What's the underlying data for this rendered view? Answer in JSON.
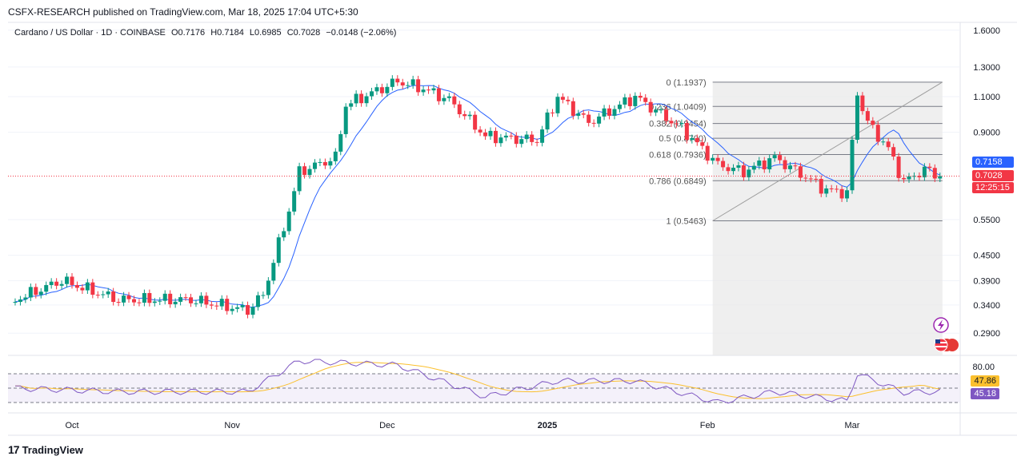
{
  "header": {
    "publisher_line": "CSFX-RESEARCH published on TradingView.com, Mar 18, 2025 17:04 UTC+5:30"
  },
  "legend": {
    "symbol": "Cardano / US Dollar · 1D · COINBASE",
    "open": "O0.7176",
    "high": "H0.7184",
    "low": "L0.6985",
    "close": "C0.7028",
    "change": "−0.0148 (−2.06%)"
  },
  "price_axis": {
    "ticks": [
      "1.6000",
      "1.3000",
      "1.1000",
      "0.9000",
      "0.5500",
      "0.4500",
      "0.3900",
      "0.3400",
      "0.2900"
    ],
    "ma_tag": "0.7158",
    "last_price_tag": "0.7028",
    "countdown": "12:25:15"
  },
  "rsi_axis": {
    "top_tick": "80.00",
    "ma_value": "47.86",
    "rsi_value": "45.18"
  },
  "time_axis": {
    "labels": [
      "Oct",
      "Nov",
      "Dec",
      "2025",
      "Feb",
      "Mar"
    ]
  },
  "fib": {
    "levels": [
      {
        "label": "0 (1.1937)",
        "ratio": 0,
        "price": 1.1937
      },
      {
        "label": "0.236 (1.0409)",
        "ratio": 0.236,
        "price": 1.0409
      },
      {
        "label": "0.382 (0.9454)",
        "ratio": 0.382,
        "price": 0.9454
      },
      {
        "label": "0.5 (0.8700)",
        "ratio": 0.5,
        "price": 0.87
      },
      {
        "label": "0.618 (0.7936)",
        "ratio": 0.618,
        "price": 0.7936
      },
      {
        "label": "0.786 (0.6849)",
        "ratio": 0.786,
        "price": 0.6849
      },
      {
        "label": "1 (0.5463)",
        "ratio": 1,
        "price": 0.5463
      }
    ]
  },
  "footer": {
    "brand": "TradingView"
  },
  "colors": {
    "up": "#089981",
    "down": "#f23645",
    "ma": "#2962ff",
    "rsi": "#7e57c2",
    "rsi_ma": "#fbc02d",
    "fib_bg": "#e8e8e8"
  },
  "chart_data": {
    "type": "candlestick",
    "symbol": "ADA/USD",
    "timeframe": "1D",
    "price_scale": "log",
    "ylim": [
      0.25,
      1.65
    ],
    "last_close": 0.7028,
    "ma_last": 0.7158,
    "anchor_points": [
      {
        "date": "2024-09-20",
        "close": 0.35
      },
      {
        "date": "2024-09-29",
        "close": 0.39
      },
      {
        "date": "2024-10-10",
        "close": 0.35
      },
      {
        "date": "2024-10-24",
        "close": 0.35
      },
      {
        "date": "2024-11-04",
        "close": 0.33
      },
      {
        "date": "2024-11-07",
        "close": 0.36
      },
      {
        "date": "2024-11-12",
        "close": 0.58
      },
      {
        "date": "2024-11-14",
        "close": 0.72
      },
      {
        "date": "2024-11-21",
        "close": 0.78
      },
      {
        "date": "2024-11-23",
        "close": 1.05
      },
      {
        "date": "2024-12-03",
        "close": 1.2
      },
      {
        "date": "2024-12-08",
        "close": 1.15
      },
      {
        "date": "2024-12-13",
        "close": 1.08
      },
      {
        "date": "2024-12-20",
        "close": 0.88
      },
      {
        "date": "2024-12-30",
        "close": 0.86
      },
      {
        "date": "2025-01-03",
        "close": 1.1
      },
      {
        "date": "2025-01-09",
        "close": 0.95
      },
      {
        "date": "2025-01-18",
        "close": 1.1
      },
      {
        "date": "2025-01-27",
        "close": 0.92
      },
      {
        "date": "2025-02-03",
        "close": 0.75
      },
      {
        "date": "2025-02-08",
        "close": 0.72
      },
      {
        "date": "2025-02-14",
        "close": 0.78
      },
      {
        "date": "2025-02-24",
        "close": 0.65
      },
      {
        "date": "2025-02-28",
        "close": 0.64
      },
      {
        "date": "2025-03-02",
        "close": 1.12
      },
      {
        "date": "2025-03-04",
        "close": 0.95
      },
      {
        "date": "2025-03-08",
        "close": 0.82
      },
      {
        "date": "2025-03-11",
        "close": 0.68
      },
      {
        "date": "2025-03-15",
        "close": 0.73
      },
      {
        "date": "2025-03-18",
        "close": 0.7028
      }
    ],
    "rsi": {
      "current": 45.18,
      "ma": 47.86,
      "upper_band": 70,
      "mid_band": 50,
      "lower_band": 30,
      "anchor_points": [
        {
          "date": "2024-09-20",
          "value": 50
        },
        {
          "date": "2024-10-10",
          "value": 45
        },
        {
          "date": "2024-11-04",
          "value": 45
        },
        {
          "date": "2024-11-14",
          "value": 88
        },
        {
          "date": "2024-12-03",
          "value": 82
        },
        {
          "date": "2024-12-20",
          "value": 38
        },
        {
          "date": "2025-01-03",
          "value": 60
        },
        {
          "date": "2025-01-18",
          "value": 60
        },
        {
          "date": "2025-02-03",
          "value": 30
        },
        {
          "date": "2025-02-14",
          "value": 45
        },
        {
          "date": "2025-02-28",
          "value": 32
        },
        {
          "date": "2025-03-02",
          "value": 70
        },
        {
          "date": "2025-03-11",
          "value": 44
        },
        {
          "date": "2025-03-18",
          "value": 45.18
        }
      ]
    }
  }
}
